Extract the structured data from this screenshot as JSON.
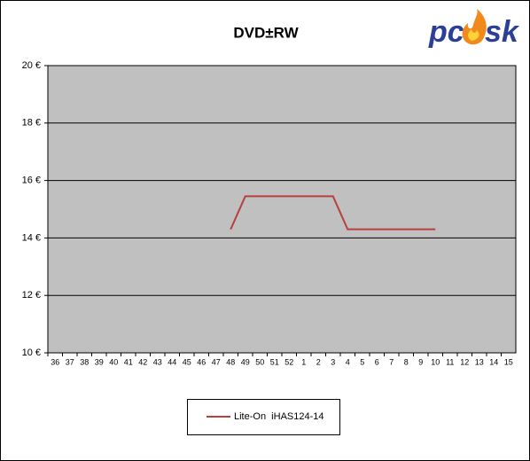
{
  "chart_data": {
    "type": "line",
    "title": "DVD±RW",
    "logo": {
      "left": "pc",
      "right": "sk"
    },
    "categories": [
      "36",
      "37",
      "38",
      "39",
      "40",
      "41",
      "42",
      "43",
      "44",
      "45",
      "46",
      "47",
      "48",
      "49",
      "50",
      "51",
      "52",
      "1",
      "2",
      "3",
      "4",
      "5",
      "6",
      "7",
      "8",
      "9",
      "10",
      "11",
      "12",
      "13",
      "14",
      "15"
    ],
    "series": [
      {
        "name": "Lite-On  iHAS124-14",
        "color": "#b8403c",
        "values": [
          null,
          null,
          null,
          null,
          null,
          null,
          null,
          null,
          null,
          null,
          null,
          null,
          14.3,
          15.45,
          15.45,
          15.45,
          15.45,
          15.45,
          15.45,
          15.45,
          14.3,
          14.3,
          14.3,
          14.3,
          14.3,
          14.3,
          14.3,
          null,
          null,
          null,
          null,
          null
        ]
      }
    ],
    "ylim": [
      10,
      20
    ],
    "yticks": [
      {
        "value": 10,
        "label": "10 €"
      },
      {
        "value": 12,
        "label": "12 €"
      },
      {
        "value": 14,
        "label": "14 €"
      },
      {
        "value": 16,
        "label": "16 €"
      },
      {
        "value": 18,
        "label": "18 €"
      },
      {
        "value": 20,
        "label": "20 €"
      }
    ],
    "grid": true,
    "legend": "bottom"
  }
}
